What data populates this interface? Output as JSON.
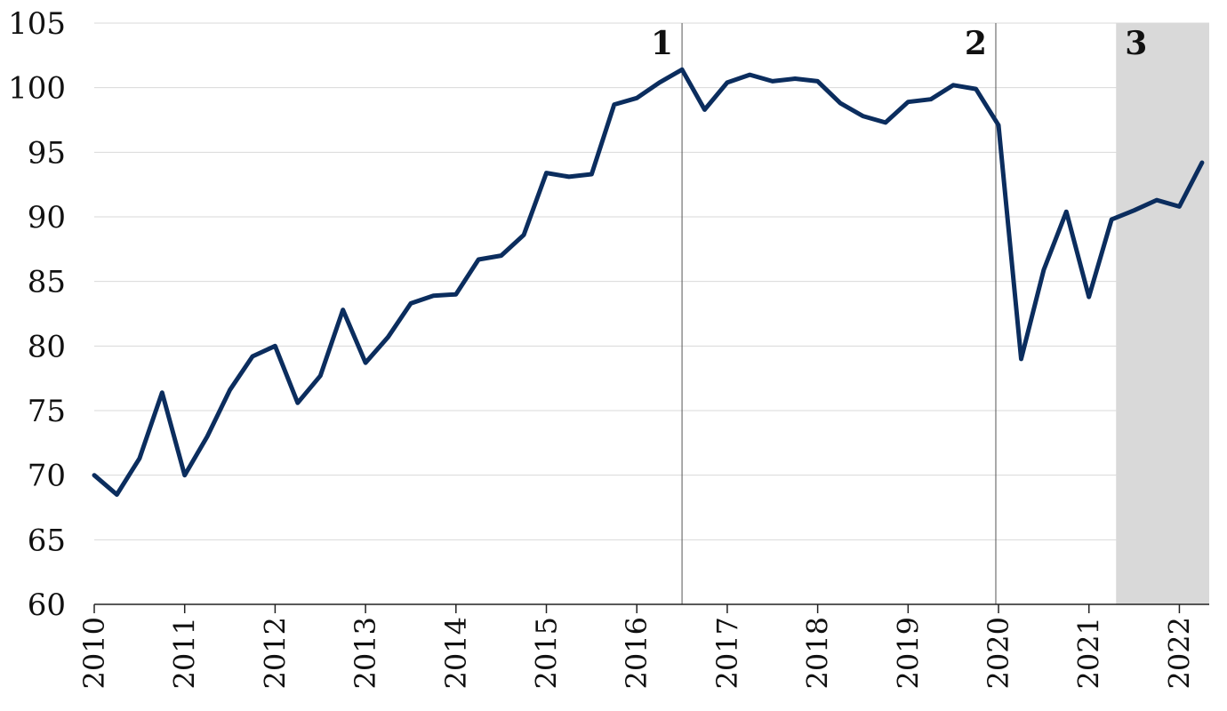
{
  "chart_data": {
    "type": "line",
    "title": "",
    "xlabel": "",
    "ylabel": "",
    "ylim": [
      60,
      105
    ],
    "yticks": [
      60,
      65,
      70,
      75,
      80,
      85,
      90,
      95,
      100,
      105
    ],
    "xlim": [
      2010,
      2022.33
    ],
    "xticks": [
      2010,
      2011,
      2012,
      2013,
      2014,
      2015,
      2016,
      2017,
      2018,
      2019,
      2020,
      2021,
      2022
    ],
    "grid": "horizontal",
    "line_color": "#0b2d5e",
    "shade_color": "#d9d9d9",
    "series": [
      {
        "x": [
          2010.0,
          2010.25,
          2010.5,
          2010.75,
          2011.0,
          2011.25,
          2011.5,
          2011.75,
          2012.0,
          2012.25,
          2012.5,
          2012.75,
          2013.0,
          2013.25,
          2013.5,
          2013.75,
          2014.0,
          2014.25,
          2014.5,
          2014.75,
          2015.0,
          2015.25,
          2015.5,
          2015.75,
          2016.0,
          2016.25,
          2016.5,
          2016.75,
          2017.0,
          2017.25,
          2017.5,
          2017.75,
          2018.0,
          2018.25,
          2018.5,
          2018.75,
          2019.0,
          2019.25,
          2019.5,
          2019.75,
          2020.0,
          2020.25,
          2020.5,
          2020.75,
          2021.0,
          2021.25,
          2021.5,
          2021.75,
          2022.0,
          2022.25
        ],
        "values": [
          70.0,
          68.5,
          71.3,
          76.4,
          70.0,
          73.0,
          76.6,
          79.2,
          80.0,
          75.6,
          77.7,
          82.8,
          78.7,
          80.7,
          83.3,
          83.9,
          84.0,
          86.7,
          87.0,
          88.6,
          93.4,
          93.1,
          93.3,
          98.7,
          99.2,
          100.4,
          101.4,
          98.3,
          100.4,
          101.0,
          100.5,
          100.7,
          100.5,
          98.8,
          97.8,
          97.3,
          98.9,
          99.1,
          100.2,
          99.9,
          97.1,
          79.0,
          85.9,
          90.4,
          83.8,
          89.8,
          90.5,
          91.3,
          90.8,
          94.2
        ]
      }
    ],
    "annotations": [
      {
        "label": "1",
        "x": 2016.5,
        "type": "line"
      },
      {
        "label": "2",
        "x": 2019.97,
        "type": "line"
      },
      {
        "label": "3",
        "x_start": 2021.3,
        "x_end": 2022.33,
        "type": "shaded"
      }
    ]
  }
}
